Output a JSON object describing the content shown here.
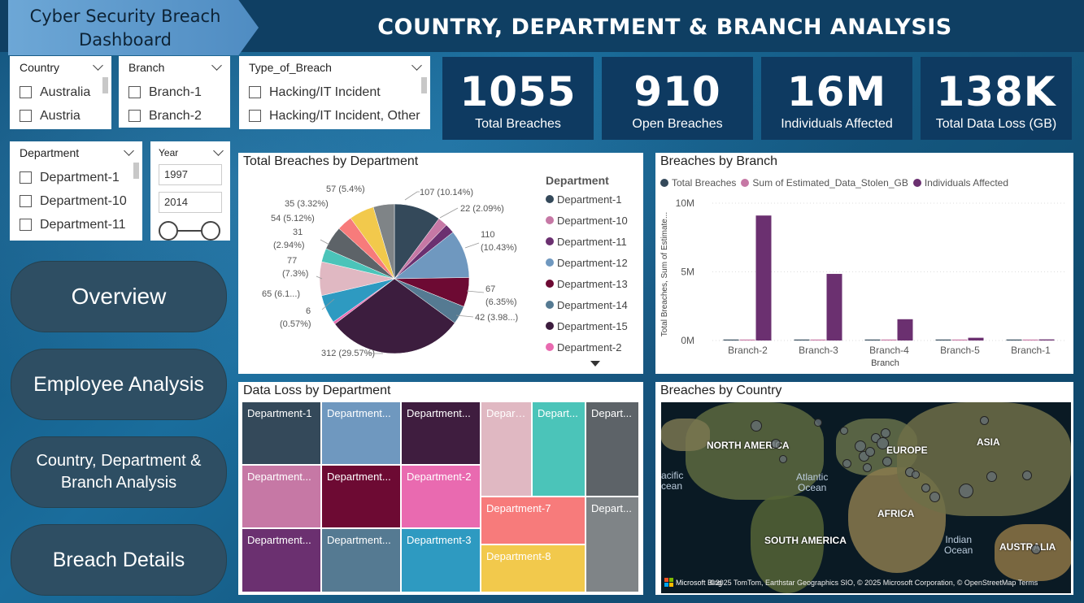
{
  "header": {
    "brand_line1": "Cyber Security Breach",
    "brand_line2": "Dashboard",
    "title": "COUNTRY, DEPARTMENT & BRANCH ANALYSIS"
  },
  "slicers": {
    "country": {
      "label": "Country",
      "options": [
        "Australia",
        "Austria"
      ]
    },
    "branch": {
      "label": "Branch",
      "options": [
        "Branch-1",
        "Branch-2"
      ]
    },
    "type_of_breach": {
      "label": "Type_of_Breach",
      "options": [
        "Hacking/IT Incident",
        "Hacking/IT Incident, Other"
      ]
    },
    "department": {
      "label": "Department",
      "options": [
        "Department-1",
        "Department-10",
        "Department-11"
      ]
    },
    "year": {
      "label": "Year",
      "from": "1997",
      "to": "2014"
    }
  },
  "kpis": [
    {
      "value": "1055",
      "label": "Total Breaches"
    },
    {
      "value": "910",
      "label": "Open Breaches"
    },
    {
      "value": "16M",
      "label": "Individuals Affected"
    },
    {
      "value": "138K",
      "label": "Total Data Loss (GB)"
    }
  ],
  "nav": {
    "overview": "Overview",
    "employee": "Employee Analysis",
    "country_line1": "Country, Department &",
    "country_line2": "Branch Analysis",
    "details": "Breach Details"
  },
  "pie": {
    "title": "Total Breaches by Department",
    "legend_title": "Department",
    "legend": [
      {
        "name": "Department-1",
        "color": "#34495a"
      },
      {
        "name": "Department-10",
        "color": "#c678a5"
      },
      {
        "name": "Department-11",
        "color": "#6b3070"
      },
      {
        "name": "Department-12",
        "color": "#6f98bf"
      },
      {
        "name": "Department-13",
        "color": "#6d0a33"
      },
      {
        "name": "Department-14",
        "color": "#557a92"
      },
      {
        "name": "Department-15",
        "color": "#3c1d3e"
      },
      {
        "name": "Department-2",
        "color": "#e96ab0"
      }
    ],
    "labels": {
      "d1": "107 (10.14%)",
      "d10": "22 (2.09%)",
      "d12a": "110",
      "d12b": "(10.43%)",
      "d13a": "67",
      "d13b": "(6.35%)",
      "d14": "42 (3.98...)",
      "d15": "312 (29.57%)",
      "d2a": "6",
      "d2b": "(0.57%)",
      "d3": "65 (6.1...)",
      "d4a": "77",
      "d4b": "(7.3%)",
      "d5a": "31",
      "d5b": "(2.94%)",
      "d6": "54 (5.12%)",
      "d7": "35 (3.32%)",
      "d8": "57 (5.4%)"
    }
  },
  "chart_data": {
    "type": "bar",
    "title": "Breaches by Branch",
    "categories": [
      "Branch-2",
      "Branch-3",
      "Branch-4",
      "Branch-5",
      "Branch-1"
    ],
    "series": [
      {
        "name": "Total Breaches",
        "color": "#34495a",
        "values": [
          300,
          250,
          200,
          150,
          155
        ]
      },
      {
        "name": "Sum of Estimated_Data_Stolen_GB",
        "color": "#c678a5",
        "values": [
          40000,
          35000,
          30000,
          15000,
          18000
        ]
      },
      {
        "name": "Individuals Affected",
        "color": "#6b3070",
        "values": [
          9100000,
          4850000,
          1550000,
          200000,
          80000
        ]
      }
    ],
    "xlabel": "Branch",
    "ylabel": "Total Breaches, Sum of Estimate...",
    "yticks": [
      "10M",
      "5M",
      "0M"
    ],
    "ylim": [
      0,
      10000000
    ]
  },
  "treemap": {
    "title": "Data Loss by Department",
    "cells": [
      {
        "label": "Department-1",
        "color": "#34495a"
      },
      {
        "label": "Department...",
        "color": "#6f98bf"
      },
      {
        "label": "Department...",
        "color": "#3f1d3f"
      },
      {
        "label": "Depart...",
        "color": "#e0b8c2"
      },
      {
        "label": "Depart...",
        "color": "#4bc4b9"
      },
      {
        "label": "Depart...",
        "color": "#5d6368"
      },
      {
        "label": "Department...",
        "color": "#c678a5"
      },
      {
        "label": "Department...",
        "color": "#6d0a33"
      },
      {
        "label": "Department-2",
        "color": "#e96ab0"
      },
      {
        "label": "Department-7",
        "color": "#f77b7b"
      },
      {
        "label": "Depart...",
        "color": "#7f8487"
      },
      {
        "label": "Department...",
        "color": "#6b3070"
      },
      {
        "label": "Department...",
        "color": "#557a92"
      },
      {
        "label": "Department-3",
        "color": "#2e9ac1"
      },
      {
        "label": "Department-8",
        "color": "#f2c94c"
      }
    ]
  },
  "map": {
    "title": "Breaches by Country",
    "labels": {
      "north_america": "NORTH AMERICA",
      "europe": "EUROPE",
      "asia": "ASIA",
      "africa": "AFRICA",
      "south_america": "SOUTH AMERICA",
      "australia": "AUSTRALIA",
      "atlantic_a": "Atlantic",
      "atlantic_b": "Ocean",
      "indian_a": "Indian",
      "indian_b": "Ocean",
      "pacific_a": "acific",
      "pacific_b": "cean"
    },
    "attribution": "©2025 TomTom, Earthstar Geographics SIO, © 2025 Microsoft Corporation, © OpenStreetMap  Terms",
    "ms_logo": "Microsoft Bing"
  }
}
